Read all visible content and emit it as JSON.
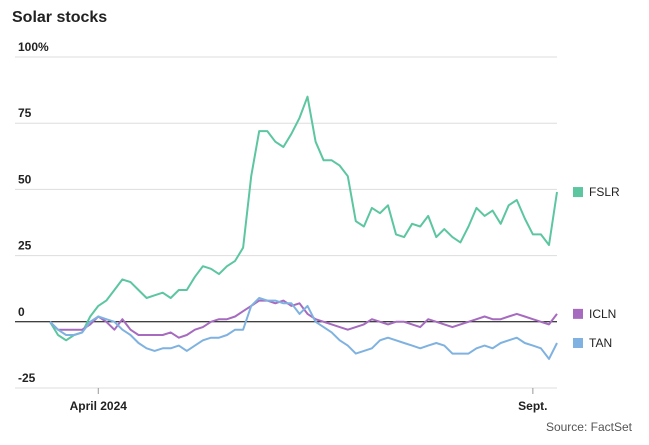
{
  "chart_data": {
    "type": "line",
    "title": "Solar stocks",
    "source": "Source: FactSet",
    "categories": [
      null,
      null,
      null,
      null,
      null,
      null,
      "April 2024",
      null,
      null,
      null,
      null,
      null,
      null,
      null,
      null,
      null,
      null,
      null,
      null,
      null,
      null,
      null,
      null,
      null,
      null,
      null,
      null,
      null,
      null,
      null,
      null,
      null,
      null,
      null,
      null,
      null,
      null,
      null,
      null,
      null,
      null,
      null,
      null,
      null,
      null,
      null,
      null,
      null,
      null,
      null,
      null,
      null,
      null,
      null,
      null,
      null,
      null,
      null,
      null,
      null,
      "Sept.",
      null,
      null,
      null
    ],
    "series": [
      {
        "name": "FSLR",
        "color": "#5cc6a0",
        "values": [
          0,
          -5,
          -7,
          -5,
          -4,
          2,
          6,
          8,
          12,
          16,
          15,
          12,
          9,
          10,
          11,
          9,
          12,
          12,
          17,
          21,
          20,
          18,
          21,
          23,
          28,
          55,
          72,
          72,
          68,
          66,
          71,
          77,
          85,
          68,
          61,
          61,
          59,
          55,
          38,
          36,
          43,
          41,
          44,
          33,
          32,
          37,
          36,
          40,
          32,
          35,
          32,
          30,
          36,
          43,
          40,
          42,
          37,
          44,
          46,
          39,
          33,
          33,
          29,
          49
        ]
      },
      {
        "name": "ICLN",
        "color": "#a66bbf",
        "values": [
          0,
          -3,
          -3,
          -3,
          -3,
          -1,
          2,
          0,
          -3,
          1,
          -3,
          -5,
          -5,
          -5,
          -5,
          -4,
          -6,
          -5,
          -3,
          -2,
          0,
          1,
          1,
          2,
          4,
          6,
          8,
          8,
          7,
          8,
          6,
          7,
          3,
          1,
          0,
          -1,
          -2,
          -3,
          -2,
          -1,
          1,
          0,
          -1,
          0,
          0,
          -1,
          -2,
          1,
          0,
          -1,
          -2,
          -1,
          0,
          1,
          2,
          1,
          1,
          2,
          3,
          2,
          1,
          0,
          -1,
          3
        ]
      },
      {
        "name": "TAN",
        "color": "#7fb2e0",
        "values": [
          0,
          -3,
          -5,
          -5,
          -4,
          0,
          2,
          1,
          0,
          -3,
          -5,
          -8,
          -10,
          -11,
          -10,
          -10,
          -9,
          -11,
          -9,
          -7,
          -6,
          -6,
          -5,
          -3,
          -3,
          6,
          9,
          8,
          8,
          7,
          7,
          3,
          6,
          0,
          -2,
          -4,
          -7,
          -9,
          -12,
          -11,
          -10,
          -7,
          -6,
          -7,
          -8,
          -9,
          -10,
          -9,
          -8,
          -9,
          -12,
          -12,
          -12,
          -10,
          -9,
          -10,
          -8,
          -7,
          -6,
          -8,
          -9,
          -10,
          -14,
          -8
        ]
      }
    ],
    "ylim": [
      -25,
      100
    ],
    "yticks": [
      -25,
      0,
      25,
      50,
      75,
      {
        "value": 100,
        "label": "100%"
      }
    ],
    "grid": true
  }
}
